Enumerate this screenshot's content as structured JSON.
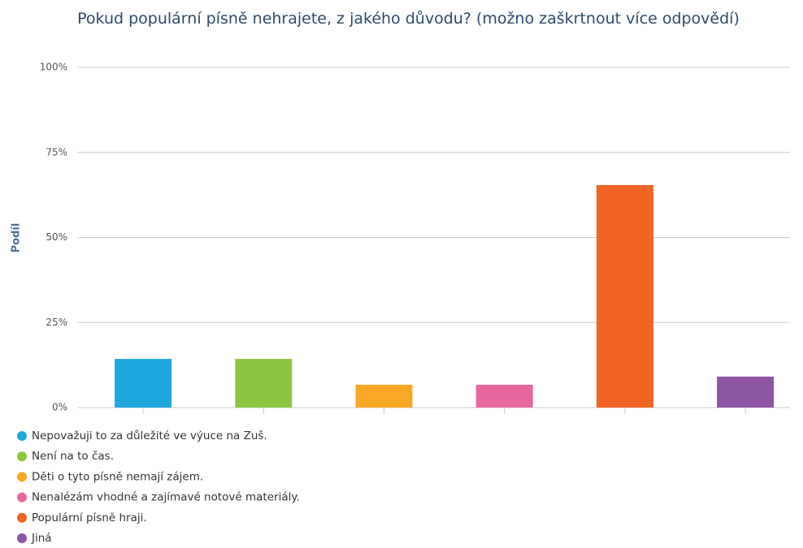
{
  "chart_data": {
    "type": "bar",
    "title": "Pokud populární písně nehrajete, z jakého důvodu? (možno zaškrtnout více odpovědí)",
    "y_label": "Podíl",
    "categories": [
      "Nepovažuji to za důležité ve výuce na Zuš.",
      "Není na to čas.",
      "Děti o tyto písně nemají zájem.",
      "Nenalézám vhodné a zajímavé notové materiály.",
      "Populární písně hraji.",
      "Jiná"
    ],
    "values": [
      14.3,
      14.3,
      6.7,
      6.7,
      65.4,
      9.1
    ],
    "colors": [
      "#1fa8e0",
      "#8cc63f",
      "#f9a825",
      "#e8679f",
      "#f06424",
      "#8e55a3"
    ],
    "ylim": [
      0,
      100
    ],
    "yticks": [
      {
        "value": 0,
        "label": "0%"
      },
      {
        "value": 25,
        "label": "25%"
      },
      {
        "value": 50,
        "label": "50%"
      },
      {
        "value": 75,
        "label": "75%"
      },
      {
        "value": 100,
        "label": "100%"
      }
    ],
    "grid": true,
    "legend": "bottom-left"
  }
}
